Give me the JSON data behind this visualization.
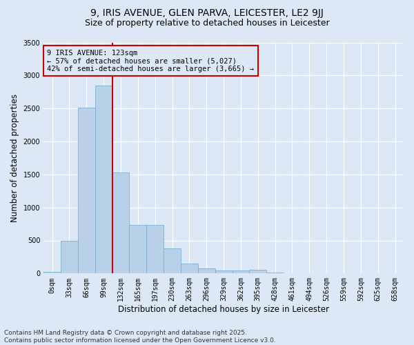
{
  "title_line1": "9, IRIS AVENUE, GLEN PARVA, LEICESTER, LE2 9JJ",
  "title_line2": "Size of property relative to detached houses in Leicester",
  "xlabel": "Distribution of detached houses by size in Leicester",
  "ylabel": "Number of detached properties",
  "categories": [
    "0sqm",
    "33sqm",
    "66sqm",
    "99sqm",
    "132sqm",
    "165sqm",
    "197sqm",
    "230sqm",
    "263sqm",
    "296sqm",
    "329sqm",
    "362sqm",
    "395sqm",
    "428sqm",
    "461sqm",
    "494sqm",
    "526sqm",
    "559sqm",
    "592sqm",
    "625sqm",
    "658sqm"
  ],
  "values": [
    20,
    490,
    2510,
    2850,
    1530,
    740,
    740,
    375,
    155,
    75,
    50,
    45,
    55,
    10,
    5,
    0,
    0,
    0,
    0,
    0,
    0
  ],
  "bar_color": "#b8d0e8",
  "bar_edge_color": "#7aafd4",
  "bg_color": "#dce8f5",
  "grid_color": "#ffffff",
  "vline_x": 4.0,
  "vline_color": "#cc0000",
  "annotation_text": "9 IRIS AVENUE: 123sqm\n← 57% of detached houses are smaller (5,027)\n42% of semi-detached houses are larger (3,665) →",
  "annotation_box_color": "#cc0000",
  "ylim": [
    0,
    3500
  ],
  "yticks": [
    0,
    500,
    1000,
    1500,
    2000,
    2500,
    3000,
    3500
  ],
  "footer_line1": "Contains HM Land Registry data © Crown copyright and database right 2025.",
  "footer_line2": "Contains public sector information licensed under the Open Government Licence v3.0.",
  "title_fontsize": 10,
  "subtitle_fontsize": 9,
  "axis_label_fontsize": 8.5,
  "tick_fontsize": 7,
  "annotation_fontsize": 7.5,
  "footer_fontsize": 6.5
}
